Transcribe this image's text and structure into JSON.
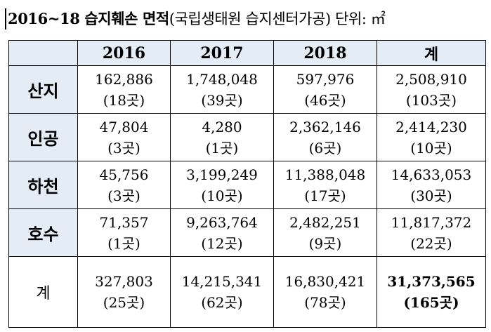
{
  "title": {
    "bold_text": "2016~18 습지훼손 면적",
    "rest_text": "(국립생태원 습지센터가공) 단위: ㎡"
  },
  "table": {
    "header": [
      "",
      "2016",
      "2017",
      "2018",
      "계"
    ],
    "rows": [
      {
        "label": "산지",
        "cells": [
          {
            "value": "162,886",
            "count": "(18곳)"
          },
          {
            "value": "1,748,048",
            "count": "(39곳)"
          },
          {
            "value": "597,976",
            "count": "(46곳)"
          },
          {
            "value": "2,508,910",
            "count": "(103곳)"
          }
        ]
      },
      {
        "label": "인공",
        "cells": [
          {
            "value": "47,804",
            "count": "(3곳)"
          },
          {
            "value": "4,280",
            "count": "(1곳)"
          },
          {
            "value": "2,362,146",
            "count": "(6곳)"
          },
          {
            "value": "2,414,230",
            "count": "(10곳)"
          }
        ]
      },
      {
        "label": "하천",
        "cells": [
          {
            "value": "45,756",
            "count": "(3곳)"
          },
          {
            "value": "3,199,249",
            "count": "(10곳)"
          },
          {
            "value": "11,388,048",
            "count": "(17곳)"
          },
          {
            "value": "14,633,053",
            "count": "(30곳)"
          }
        ]
      },
      {
        "label": "호수",
        "cells": [
          {
            "value": "71,357",
            "count": "(1곳)"
          },
          {
            "value": "9,263,764",
            "count": "(12곳)"
          },
          {
            "value": "2,482,251",
            "count": "(9곳)"
          },
          {
            "value": "11,817,372",
            "count": "(22곳)"
          }
        ]
      },
      {
        "label": "계",
        "cells": [
          {
            "value": "327,803",
            "count": "(25곳)"
          },
          {
            "value": "14,215,341",
            "count": "(62곳)"
          },
          {
            "value": "16,830,421",
            "count": "(78곳)"
          },
          {
            "value": "31,373,565",
            "count": "(165곳)"
          }
        ]
      }
    ]
  },
  "colors": {
    "header_bg": "#e4ecf6",
    "border": "#000000"
  }
}
